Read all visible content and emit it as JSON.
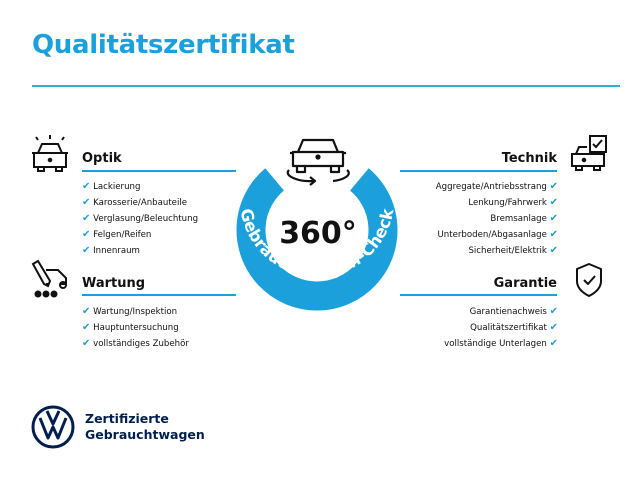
{
  "header": {
    "title": "Qualitätszertifikat"
  },
  "colors": {
    "accent": "#1ba0db",
    "rule": "#2ab3c9",
    "brand": "#001e50"
  },
  "center": {
    "degrees": "360°",
    "ring_text": "Gebrauchtwagen-Check",
    "icon": "car-rotate-icon"
  },
  "sections": {
    "optik": {
      "title": "Optik",
      "icon": "car-lights-icon",
      "items": [
        "Lackierung",
        "Karosserie/Anbauteile",
        "Verglasung/Beleuchtung",
        "Felgen/Reifen",
        "Innenraum"
      ]
    },
    "wartung": {
      "title": "Wartung",
      "icon": "service-tools-icon",
      "items": [
        "Wartung/Inspektion",
        "Hauptuntersuchung",
        "vollständiges Zubehör"
      ]
    },
    "technik": {
      "title": "Technik",
      "icon": "car-checkbox-icon",
      "items": [
        "Aggregate/Antriebsstrang",
        "Lenkung/Fahrwerk",
        "Bremsanlage",
        "Unterboden/Abgasanlage",
        "Sicherheit/Elektrik"
      ]
    },
    "garantie": {
      "title": "Garantie",
      "icon": "shield-check-icon",
      "items": [
        "Garantienachweis",
        "Qualitätszertifikat",
        "vollständige Unterlagen"
      ]
    }
  },
  "check_mark": "✔",
  "footer": {
    "line1": "Zertifizierte",
    "line2": "Gebrauchtwagen",
    "logo": "vw-logo"
  }
}
